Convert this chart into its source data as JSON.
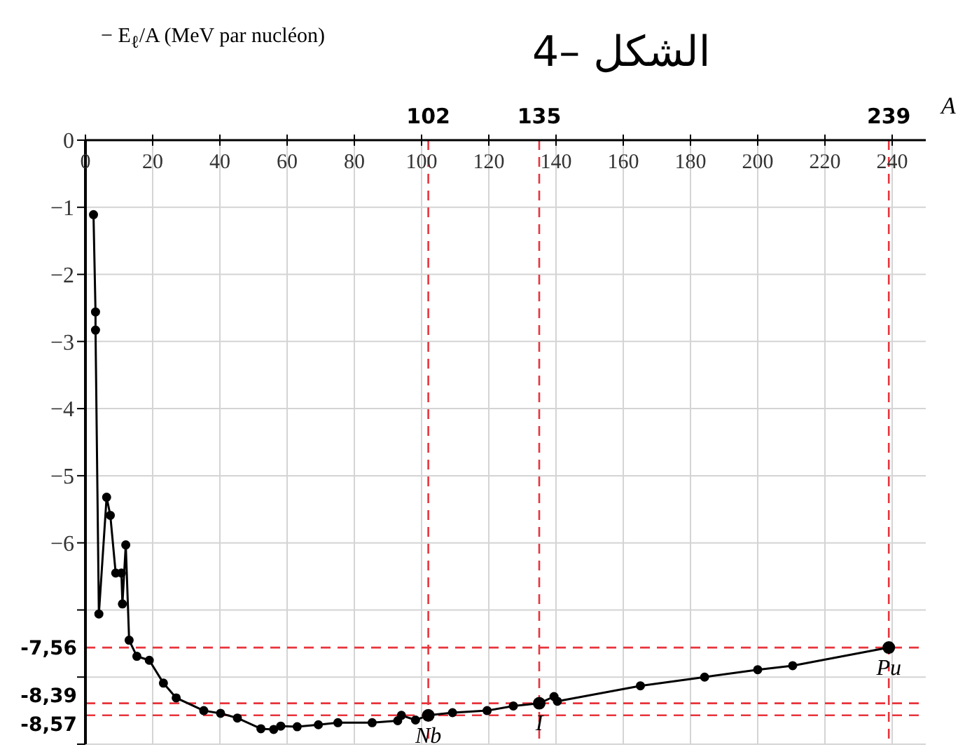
{
  "chart_data": {
    "type": "line",
    "title": "الشكل –4",
    "xlabel": "A",
    "ylabel": "− E$_{ℓ}$/A (MeV par nucléon)",
    "xlim": [
      0,
      250
    ],
    "xticks": [
      0,
      20,
      40,
      60,
      80,
      100,
      120,
      140,
      160,
      180,
      200,
      220,
      240
    ],
    "ylim": [
      -9,
      0
    ],
    "yticks": [
      0,
      -1,
      -2,
      -3,
      -4,
      -5,
      -6,
      {
        "value": -7,
        "label": null
      },
      {
        "value": -8,
        "label": null
      },
      {
        "value": -9,
        "label": null
      }
    ],
    "grid": true,
    "marker": "circle",
    "line_style": "solid",
    "series": [
      {
        "color": "#000000",
        "x": [
          2.4,
          3,
          3,
          4,
          6.3,
          7.4,
          9,
          10.7,
          11,
          12,
          13,
          15.3,
          19,
          23.2,
          27,
          35.2,
          40.2,
          45.2,
          52.2,
          56,
          58.1,
          63,
          69.3,
          75.1,
          85.3,
          92.9,
          94,
          98.2,
          102,
          109.2,
          119.5,
          127.3,
          135,
          139.4,
          140.4,
          165.1,
          184.2,
          200,
          210.4,
          239
        ],
        "values": [
          -1.11,
          -2.56,
          -2.83,
          -7.06,
          -5.32,
          -5.59,
          -6.45,
          -6.45,
          -6.91,
          -6.03,
          -7.45,
          -7.69,
          -7.75,
          -8.09,
          -8.31,
          -8.5,
          -8.54,
          -8.61,
          -8.77,
          -8.78,
          -8.73,
          -8.74,
          -8.71,
          -8.68,
          -8.68,
          -8.65,
          -8.57,
          -8.64,
          -8.57,
          -8.53,
          -8.5,
          -8.43,
          -8.39,
          -8.29,
          -8.36,
          -8.13,
          -8,
          -7.89,
          -7.83,
          -7.56
        ]
      },
      {
        "type": "scatter",
        "color": "#000000",
        "x": [
          102,
          135,
          239
        ],
        "values": [
          -8.57,
          -8.39,
          -7.56
        ]
      }
    ],
    "ref_lines": [
      {
        "axis": "x",
        "value": 102,
        "label": "102",
        "color": "#e8343c",
        "line_style": "dashed"
      },
      {
        "axis": "x",
        "value": 135,
        "label": "135",
        "color": "#e8343c",
        "line_style": "dashed"
      },
      {
        "axis": "x",
        "value": 239,
        "label": "239",
        "color": "#e8343c",
        "line_style": "dashed"
      },
      {
        "axis": "y",
        "value": -7.56,
        "label": "-7,56",
        "color": "#e8343c",
        "line_style": "dashed"
      },
      {
        "axis": "y",
        "value": -8.39,
        "label": "-8,39",
        "color": "#e8343c",
        "line_style": "dashed"
      },
      {
        "axis": "y",
        "value": -8.57,
        "label": "-8,57",
        "color": "#e8343c",
        "line_style": "dashed"
      }
    ],
    "annotations": [
      {
        "text": "Nb",
        "x": 102,
        "y": -8.57
      },
      {
        "text": "I",
        "x": 135,
        "y": -8.39
      },
      {
        "text": "Pu",
        "x": 239,
        "y": -7.56
      }
    ]
  }
}
